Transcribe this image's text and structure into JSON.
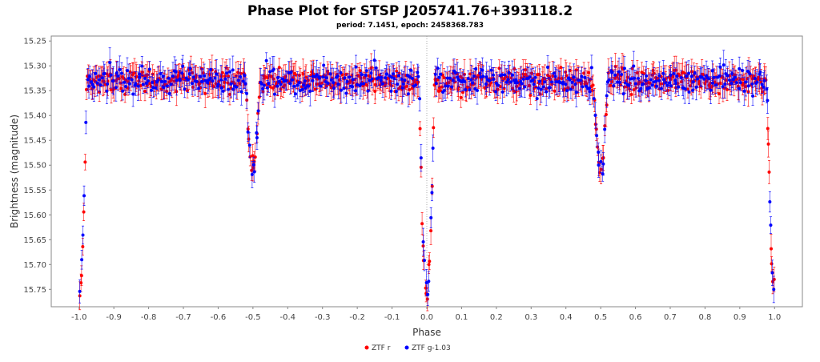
{
  "chart_data": {
    "type": "scatter",
    "title": "Phase Plot for STSP J205741.76+393118.2",
    "subtitle": "period: 7.1451, epoch: 2458368.783",
    "xlabel": "Phase",
    "ylabel": "Brightness (magnitude)",
    "xlim": [
      -1.08,
      1.08
    ],
    "ylim": [
      15.785,
      15.24
    ],
    "y_inverted": true,
    "x_ticks": [
      "-1.0",
      "-0.9",
      "-0.8",
      "-0.7",
      "-0.6",
      "-0.5",
      "-0.4",
      "-0.3",
      "-0.2",
      "-0.1",
      "0.0",
      "0.1",
      "0.2",
      "0.3",
      "0.4",
      "0.5",
      "0.6",
      "0.7",
      "0.8",
      "0.9",
      "1.0"
    ],
    "y_ticks": [
      "15.25",
      "15.30",
      "15.35",
      "15.40",
      "15.45",
      "15.50",
      "15.55",
      "15.60",
      "15.65",
      "15.70",
      "15.75"
    ],
    "grid": false,
    "legend_position": "bottom-center",
    "reference_line_x": 0.0,
    "light_curve_model": {
      "baseline_magnitude": 15.33,
      "scatter": 0.025,
      "error_bar": 0.02,
      "primary_eclipse": {
        "phase": 0.0,
        "depth_magnitude": 15.76,
        "half_width_phase": 0.022
      },
      "secondary_eclipse": {
        "phase": 0.5,
        "depth_magnitude": 15.51,
        "half_width_phase": 0.02
      }
    },
    "series": [
      {
        "name": "ZTF r",
        "color": "#ff0000",
        "point_count": 620
      },
      {
        "name": "ZTF g-1.03",
        "color": "#0000ff",
        "point_count": 470
      }
    ]
  }
}
